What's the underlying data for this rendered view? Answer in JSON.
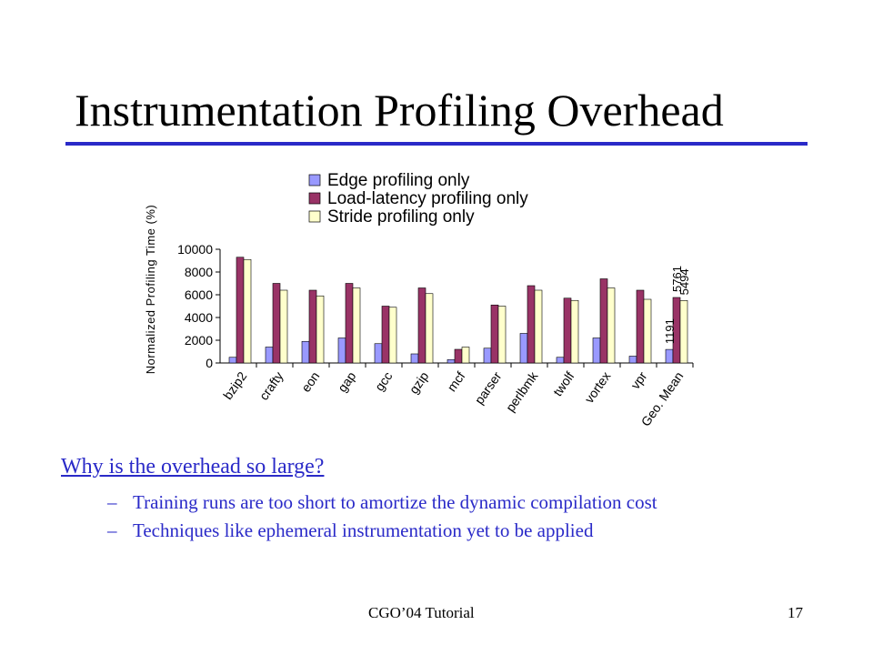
{
  "slide": {
    "title": "Instrumentation Profiling Overhead",
    "question": "Why is the overhead so large?",
    "bullets": [
      {
        "dash": "–",
        "text": "Training runs are too short to amortize the dynamic compilation cost"
      },
      {
        "dash": "–",
        "text": "Techniques like ephemeral instrumentation yet to be applied"
      }
    ],
    "footer": "CGO’04 Tutorial",
    "page_number": "17"
  },
  "colors": {
    "accent": "#2a2ac8",
    "edge": "#9999ff",
    "load": "#993366",
    "stride": "#ffffcc"
  },
  "chart_data": {
    "type": "bar",
    "ylabel": "Normalized Profiling Time (%)",
    "ylim": [
      0,
      10000
    ],
    "yticks": [
      0,
      2000,
      4000,
      6000,
      8000,
      10000
    ],
    "legend_position": "top",
    "categories": [
      "bzip2",
      "crafty",
      "eon",
      "gap",
      "gcc",
      "gzip",
      "mcf",
      "parser",
      "perlbmk",
      "twolf",
      "vortex",
      "vpr",
      "Geo. Mean"
    ],
    "series": [
      {
        "name": "Edge profiling only",
        "color": "#9999ff",
        "values": [
          500,
          1400,
          1900,
          2200,
          1700,
          800,
          300,
          1300,
          2600,
          500,
          2200,
          600,
          1191
        ]
      },
      {
        "name": "Load-latency profiling only",
        "color": "#993366",
        "values": [
          9300,
          7000,
          6400,
          7000,
          5000,
          6600,
          1200,
          5100,
          6800,
          5700,
          7400,
          6400,
          5761
        ]
      },
      {
        "name": "Stride profiling only",
        "color": "#ffffcc",
        "values": [
          9100,
          6400,
          5900,
          6600,
          4900,
          6100,
          1400,
          5000,
          6400,
          5500,
          6600,
          5600,
          5494
        ]
      }
    ],
    "data_labels": [
      {
        "category": "Geo. Mean",
        "series": "Edge profiling only",
        "text": "1191"
      },
      {
        "category": "Geo. Mean",
        "series": "Load-latency profiling only",
        "text": "5761"
      },
      {
        "category": "Geo. Mean",
        "series": "Stride profiling only",
        "text": "5494"
      }
    ]
  }
}
